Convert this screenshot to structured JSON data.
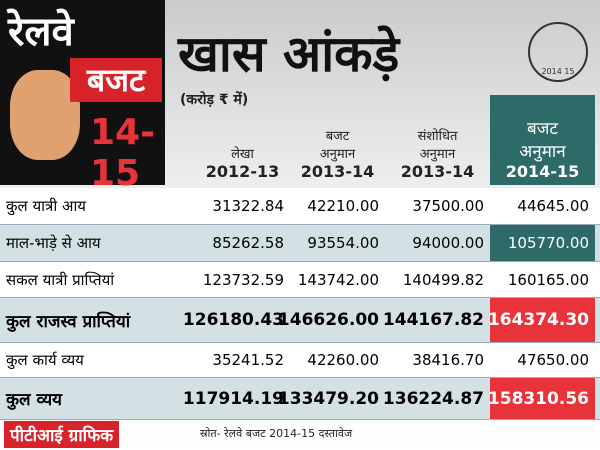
{
  "header": {
    "badge": [
      "रेलवे",
      "बजट",
      "14-15"
    ],
    "title": "खास आंकड़े",
    "unit": "(करोड़ ₹ में)",
    "emblem": "2014 15"
  },
  "table": {
    "columns": [
      [
        "लेखा",
        "2012-13"
      ],
      [
        "बजट",
        "अनुमान",
        "2013-14"
      ],
      [
        "संशोधित",
        "अनुमान",
        "2013-14"
      ],
      [
        "बजट",
        "अनुमान",
        "2014-15"
      ]
    ],
    "rows": [
      [
        "कुल यात्री आय",
        "31322.84",
        "42210.00",
        "37500.00",
        "44645.00"
      ],
      [
        "माल-भाड़े से आय",
        "85262.58",
        "93554.00",
        "94000.00",
        "105770.00"
      ],
      [
        "सकल यात्री प्राप्तियां",
        "123732.59",
        "143742.00",
        "140499.82",
        "160165.00"
      ],
      [
        "कुल राजस्व प्राप्तियां",
        "126180.43",
        "146626.00",
        "144167.82",
        "164374.30"
      ],
      [
        "कुल कार्य व्यय",
        "35241.52",
        "42260.00",
        "38416.70",
        "47650.00"
      ],
      [
        "कुल व्यय",
        "117914.19",
        "133479.20",
        "136224.87",
        "158310.56"
      ]
    ]
  },
  "footer": {
    "credit": "पीटीआई ग्राफिक",
    "source": "स्रोत- रेलवे बजट 2014-15 दस्तावेज"
  }
}
